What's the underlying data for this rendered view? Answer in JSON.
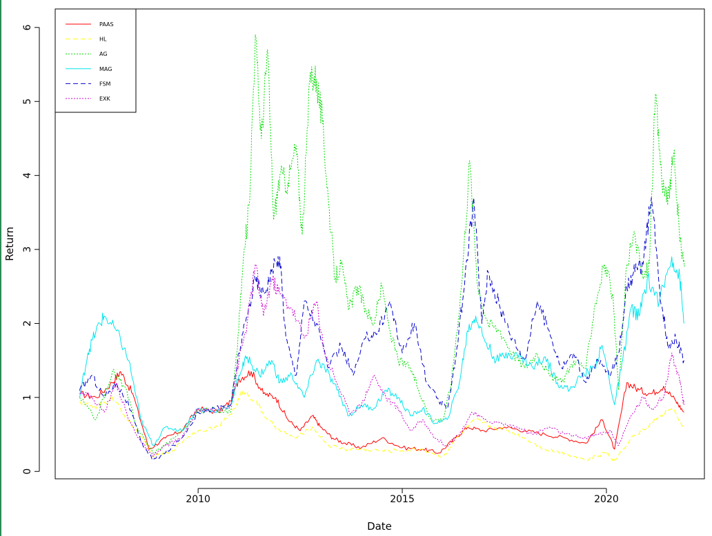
{
  "chart_data": {
    "type": "line",
    "title": "",
    "xlabel": "Date",
    "ylabel": "Return",
    "xlim": [
      2006.5,
      2022.4
    ],
    "ylim": [
      -0.1,
      6.25
    ],
    "xticks": [
      {
        "value": 2010,
        "label": "2010"
      },
      {
        "value": 2015,
        "label": "2015"
      },
      {
        "value": 2020,
        "label": "2020"
      }
    ],
    "yticks": [
      {
        "value": 0,
        "label": "0"
      },
      {
        "value": 1,
        "label": "1"
      },
      {
        "value": 2,
        "label": "2"
      },
      {
        "value": 3,
        "label": "3"
      },
      {
        "value": 4,
        "label": "4"
      },
      {
        "value": 5,
        "label": "5"
      },
      {
        "value": 6,
        "label": "6"
      }
    ],
    "grid": false,
    "legend_position": "top-left",
    "series": [
      {
        "name": "PAAS",
        "color": "#ff0000",
        "dash": "",
        "x": [
          2007.1,
          2007.5,
          2007.9,
          2008.1,
          2008.4,
          2008.8,
          2009.2,
          2009.6,
          2010.0,
          2010.5,
          2010.8,
          2011.0,
          2011.3,
          2011.6,
          2011.9,
          2012.2,
          2012.5,
          2012.8,
          2013.0,
          2013.3,
          2013.6,
          2014.0,
          2014.5,
          2015.0,
          2015.5,
          2015.9,
          2016.3,
          2016.6,
          2017.0,
          2017.5,
          2018.0,
          2018.5,
          2019.0,
          2019.5,
          2019.9,
          2020.2,
          2020.5,
          2020.8,
          2021.1,
          2021.4,
          2021.7,
          2021.9
        ],
        "y": [
          1.05,
          1.0,
          1.2,
          1.35,
          1.05,
          0.3,
          0.45,
          0.55,
          0.85,
          0.8,
          0.95,
          1.25,
          1.35,
          1.05,
          1.0,
          0.7,
          0.55,
          0.75,
          0.6,
          0.45,
          0.38,
          0.32,
          0.45,
          0.32,
          0.3,
          0.25,
          0.45,
          0.6,
          0.55,
          0.6,
          0.55,
          0.5,
          0.45,
          0.38,
          0.7,
          0.3,
          1.2,
          1.1,
          1.05,
          1.15,
          0.95,
          0.8
        ]
      },
      {
        "name": "HL",
        "color": "#ffff00",
        "dash": "7,4",
        "x": [
          2007.1,
          2007.5,
          2007.9,
          2008.2,
          2008.5,
          2008.9,
          2009.3,
          2009.7,
          2010.0,
          2010.5,
          2010.9,
          2011.1,
          2011.4,
          2011.7,
          2012.0,
          2012.4,
          2012.8,
          2013.2,
          2013.6,
          2014.0,
          2014.5,
          2015.0,
          2015.5,
          2016.0,
          2016.4,
          2016.8,
          2017.2,
          2017.6,
          2018.0,
          2018.5,
          2019.0,
          2019.5,
          2020.0,
          2020.2,
          2020.6,
          2021.0,
          2021.3,
          2021.6,
          2021.9
        ],
        "y": [
          0.95,
          0.85,
          1.0,
          0.75,
          0.55,
          0.2,
          0.25,
          0.45,
          0.55,
          0.6,
          0.85,
          1.1,
          0.95,
          0.7,
          0.55,
          0.45,
          0.6,
          0.35,
          0.3,
          0.3,
          0.28,
          0.28,
          0.3,
          0.2,
          0.5,
          0.7,
          0.6,
          0.55,
          0.45,
          0.3,
          0.25,
          0.15,
          0.25,
          0.15,
          0.45,
          0.6,
          0.75,
          0.85,
          0.6
        ]
      },
      {
        "name": "AG",
        "color": "#00dd00",
        "dash": "2,2",
        "x": [
          2007.1,
          2007.5,
          2007.9,
          2008.2,
          2008.5,
          2008.9,
          2009.3,
          2009.7,
          2010.0,
          2010.4,
          2010.8,
          2010.95,
          2011.1,
          2011.25,
          2011.4,
          2011.55,
          2011.7,
          2011.85,
          2012.0,
          2012.2,
          2012.4,
          2012.55,
          2012.75,
          2012.9,
          2013.05,
          2013.2,
          2013.35,
          2013.5,
          2013.7,
          2013.9,
          2014.1,
          2014.3,
          2014.5,
          2014.7,
          2014.9,
          2015.2,
          2015.4,
          2015.7,
          2016.0,
          2016.2,
          2016.45,
          2016.65,
          2016.85,
          2017.1,
          2017.4,
          2017.7,
          2018.0,
          2018.3,
          2018.6,
          2018.9,
          2019.2,
          2019.5,
          2019.7,
          2019.95,
          2020.15,
          2020.3,
          2020.5,
          2020.7,
          2020.9,
          2021.05,
          2021.2,
          2021.35,
          2021.5,
          2021.65,
          2021.8,
          2021.92
        ],
        "y": [
          1.0,
          0.7,
          1.35,
          1.15,
          0.6,
          0.25,
          0.4,
          0.6,
          0.8,
          0.85,
          0.8,
          1.6,
          2.8,
          3.6,
          5.9,
          4.5,
          5.7,
          3.4,
          4.0,
          3.9,
          4.4,
          3.2,
          5.4,
          5.3,
          4.7,
          3.6,
          2.6,
          2.8,
          2.2,
          2.5,
          2.2,
          2.0,
          2.5,
          1.9,
          1.5,
          1.4,
          1.1,
          0.7,
          0.7,
          1.2,
          2.5,
          4.2,
          2.5,
          2.0,
          1.9,
          1.6,
          1.4,
          1.6,
          1.3,
          1.2,
          1.5,
          1.4,
          2.2,
          2.8,
          2.4,
          1.1,
          2.8,
          3.2,
          2.6,
          2.8,
          5.1,
          4.0,
          3.6,
          4.3,
          3.1,
          2.8
        ]
      },
      {
        "name": "MAG",
        "color": "#00e5ee",
        "dash": "",
        "x": [
          2007.1,
          2007.3,
          2007.5,
          2007.7,
          2008.0,
          2008.3,
          2008.6,
          2008.9,
          2009.2,
          2009.6,
          2010.0,
          2010.4,
          2010.8,
          2011.0,
          2011.2,
          2011.5,
          2011.8,
          2012.0,
          2012.3,
          2012.6,
          2012.9,
          2013.1,
          2013.4,
          2013.7,
          2014.0,
          2014.3,
          2014.6,
          2014.9,
          2015.2,
          2015.5,
          2015.8,
          2016.1,
          2016.4,
          2016.6,
          2016.8,
          2017.0,
          2017.3,
          2017.6,
          2017.9,
          2018.2,
          2018.5,
          2018.8,
          2019.1,
          2019.4,
          2019.7,
          2019.9,
          2020.2,
          2020.4,
          2020.6,
          2020.8,
          2021.0,
          2021.3,
          2021.6,
          2021.8,
          2021.9
        ],
        "y": [
          1.0,
          1.6,
          1.9,
          2.1,
          1.9,
          1.5,
          0.7,
          0.35,
          0.6,
          0.55,
          0.85,
          0.8,
          0.9,
          1.3,
          1.55,
          1.3,
          1.5,
          1.2,
          1.3,
          1.0,
          1.5,
          1.4,
          1.1,
          0.75,
          0.9,
          0.85,
          1.1,
          1.0,
          0.75,
          0.85,
          0.65,
          0.7,
          1.2,
          1.9,
          2.1,
          1.8,
          1.5,
          1.6,
          1.55,
          1.4,
          1.55,
          1.2,
          1.1,
          1.3,
          1.4,
          1.7,
          0.9,
          1.5,
          2.2,
          2.1,
          2.6,
          2.3,
          2.9,
          2.6,
          2.0
        ]
      },
      {
        "name": "FSM",
        "color": "#0000cc",
        "dash": "7,4",
        "x": [
          2007.1,
          2007.4,
          2007.7,
          2008.0,
          2008.3,
          2008.6,
          2008.9,
          2009.2,
          2009.6,
          2010.0,
          2010.4,
          2010.8,
          2011.0,
          2011.2,
          2011.4,
          2011.6,
          2011.8,
          2012.0,
          2012.15,
          2012.4,
          2012.6,
          2012.9,
          2013.2,
          2013.5,
          2013.8,
          2014.1,
          2014.4,
          2014.7,
          2015.0,
          2015.3,
          2015.6,
          2015.9,
          2016.1,
          2016.3,
          2016.5,
          2016.75,
          2016.95,
          2017.1,
          2017.4,
          2017.7,
          2018.0,
          2018.3,
          2018.6,
          2018.9,
          2019.2,
          2019.5,
          2019.8,
          2020.1,
          2020.3,
          2020.5,
          2020.7,
          2020.9,
          2021.1,
          2021.3,
          2021.5,
          2021.7,
          2021.9
        ],
        "y": [
          1.1,
          1.3,
          1.0,
          1.2,
          0.9,
          0.4,
          0.15,
          0.25,
          0.45,
          0.8,
          0.85,
          0.9,
          1.6,
          2.1,
          2.6,
          2.4,
          2.7,
          2.9,
          1.8,
          1.3,
          2.3,
          2.0,
          1.4,
          1.7,
          1.3,
          1.8,
          1.9,
          2.3,
          1.6,
          2.0,
          1.2,
          0.95,
          0.85,
          1.5,
          2.4,
          3.7,
          2.0,
          2.7,
          2.2,
          1.8,
          1.5,
          2.3,
          1.9,
          1.4,
          1.6,
          1.2,
          1.5,
          1.3,
          1.6,
          2.5,
          2.7,
          2.8,
          3.7,
          2.5,
          1.7,
          1.8,
          1.5
        ]
      },
      {
        "name": "EXK",
        "color": "#cc00cc",
        "dash": "2,2",
        "x": [
          2007.1,
          2007.4,
          2007.7,
          2008.0,
          2008.3,
          2008.6,
          2008.9,
          2009.2,
          2009.6,
          2010.0,
          2010.4,
          2010.8,
          2011.0,
          2011.2,
          2011.4,
          2011.6,
          2011.8,
          2012.0,
          2012.3,
          2012.6,
          2012.9,
          2013.1,
          2013.4,
          2013.7,
          2014.0,
          2014.3,
          2014.6,
          2014.9,
          2015.2,
          2015.5,
          2015.8,
          2016.1,
          2016.4,
          2016.7,
          2017.0,
          2017.4,
          2017.8,
          2018.2,
          2018.6,
          2019.0,
          2019.4,
          2019.8,
          2020.1,
          2020.3,
          2020.6,
          2020.9,
          2021.1,
          2021.4,
          2021.6,
          2021.8,
          2021.9
        ],
        "y": [
          1.1,
          1.0,
          0.8,
          1.2,
          0.7,
          0.4,
          0.2,
          0.35,
          0.45,
          0.85,
          0.8,
          0.9,
          1.5,
          2.0,
          2.8,
          2.1,
          2.6,
          2.4,
          2.2,
          1.8,
          2.3,
          1.6,
          1.2,
          0.8,
          0.9,
          1.3,
          1.0,
          0.85,
          0.55,
          0.7,
          0.45,
          0.35,
          0.5,
          0.8,
          0.7,
          0.65,
          0.6,
          0.5,
          0.6,
          0.5,
          0.45,
          0.5,
          0.55,
          0.35,
          0.75,
          1.0,
          0.85,
          1.0,
          1.6,
          1.2,
          0.9
        ]
      }
    ]
  }
}
